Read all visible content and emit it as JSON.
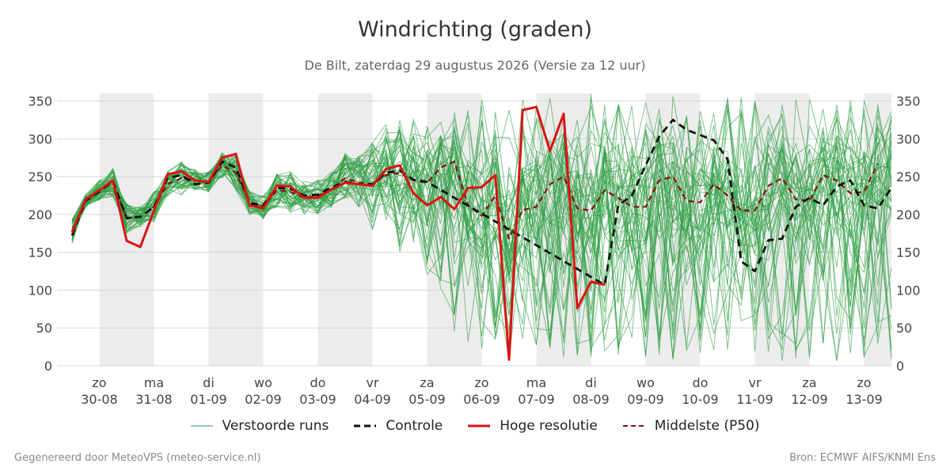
{
  "chart_data": {
    "type": "line",
    "title": "Windrichting (graden)",
    "subtitle": "De Bilt, zaterdag 29 augustus 2026 (Versie za 12 uur)",
    "ylim": [
      0,
      360
    ],
    "yticks": [
      0,
      50,
      100,
      150,
      200,
      250,
      300,
      350
    ],
    "grid": true,
    "legend_position": "bottom",
    "x_ticks": [
      {
        "day": "zo",
        "date": "30-08"
      },
      {
        "day": "ma",
        "date": "31-08"
      },
      {
        "day": "di",
        "date": "01-09"
      },
      {
        "day": "wo",
        "date": "02-09"
      },
      {
        "day": "do",
        "date": "03-09"
      },
      {
        "day": "vr",
        "date": "04-09"
      },
      {
        "day": "za",
        "date": "05-09"
      },
      {
        "day": "zo",
        "date": "06-09"
      },
      {
        "day": "ma",
        "date": "07-09"
      },
      {
        "day": "di",
        "date": "08-09"
      },
      {
        "day": "wo",
        "date": "09-09"
      },
      {
        "day": "do",
        "date": "10-09"
      },
      {
        "day": "vr",
        "date": "11-09"
      },
      {
        "day": "za",
        "date": "12-09"
      },
      {
        "day": "zo",
        "date": "13-09"
      }
    ],
    "x_unit": "days since 29-08 00:00",
    "shaded_day_bands": [
      [
        1.0,
        2.0
      ],
      [
        3.0,
        4.0
      ],
      [
        5.0,
        6.0
      ],
      [
        7.0,
        8.0
      ],
      [
        9.0,
        10.0
      ],
      [
        11.0,
        12.0
      ],
      [
        13.0,
        14.0
      ],
      [
        15.0,
        15.5
      ]
    ],
    "series": [
      {
        "name": "Hoge resolutie",
        "color": "#dd1111",
        "style": "solid",
        "points": [
          [
            0.5,
            176
          ],
          [
            0.75,
            220
          ],
          [
            1.0,
            232
          ],
          [
            1.25,
            245
          ],
          [
            1.5,
            165
          ],
          [
            1.75,
            157
          ],
          [
            2.0,
            205
          ],
          [
            2.25,
            253
          ],
          [
            2.5,
            257
          ],
          [
            2.75,
            245
          ],
          [
            3.0,
            243
          ],
          [
            3.25,
            275
          ],
          [
            3.5,
            280
          ],
          [
            3.75,
            212
          ],
          [
            4.0,
            208
          ],
          [
            4.25,
            238
          ],
          [
            4.5,
            237
          ],
          [
            4.75,
            222
          ],
          [
            5.0,
            222
          ],
          [
            5.25,
            233
          ],
          [
            5.5,
            242
          ],
          [
            5.75,
            240
          ],
          [
            6.0,
            238
          ],
          [
            6.25,
            260
          ],
          [
            6.5,
            265
          ],
          [
            6.75,
            228
          ],
          [
            7.0,
            212
          ],
          [
            7.25,
            223
          ],
          [
            7.5,
            207
          ],
          [
            7.75,
            235
          ],
          [
            8.0,
            236
          ],
          [
            8.25,
            252
          ],
          [
            8.5,
            8
          ],
          [
            8.75,
            338
          ],
          [
            9.0,
            342
          ],
          [
            9.25,
            284
          ],
          [
            9.5,
            333
          ],
          [
            9.75,
            76
          ],
          [
            10.0,
            111
          ],
          [
            10.25,
            107
          ]
        ]
      },
      {
        "name": "Controle",
        "color": "#111111",
        "style": "dashed",
        "points": [
          [
            0.5,
            172
          ],
          [
            0.75,
            218
          ],
          [
            1.0,
            230
          ],
          [
            1.25,
            244
          ],
          [
            1.5,
            195
          ],
          [
            1.75,
            197
          ],
          [
            2.0,
            210
          ],
          [
            2.25,
            248
          ],
          [
            2.5,
            252
          ],
          [
            2.75,
            240
          ],
          [
            3.0,
            242
          ],
          [
            3.25,
            270
          ],
          [
            3.5,
            262
          ],
          [
            3.75,
            215
          ],
          [
            4.0,
            212
          ],
          [
            4.25,
            235
          ],
          [
            4.5,
            234
          ],
          [
            4.75,
            225
          ],
          [
            5.0,
            226
          ],
          [
            5.25,
            236
          ],
          [
            5.5,
            243
          ],
          [
            5.75,
            240
          ],
          [
            6.0,
            240
          ],
          [
            6.25,
            255
          ],
          [
            6.5,
            258
          ],
          [
            6.75,
            246
          ],
          [
            7.0,
            243
          ],
          [
            10.25,
            107
          ],
          [
            10.5,
            212
          ],
          [
            10.75,
            225
          ],
          [
            11.0,
            265
          ],
          [
            11.25,
            303
          ],
          [
            11.5,
            325
          ],
          [
            11.75,
            312
          ],
          [
            12.0,
            305
          ],
          [
            12.25,
            298
          ],
          [
            12.5,
            273
          ],
          [
            12.75,
            138
          ],
          [
            13.0,
            125
          ],
          [
            13.25,
            166
          ],
          [
            13.5,
            168
          ],
          [
            13.75,
            210
          ],
          [
            14.0,
            222
          ],
          [
            14.25,
            212
          ],
          [
            14.5,
            237
          ],
          [
            14.75,
            245
          ],
          [
            15.0,
            212
          ],
          [
            15.25,
            208
          ],
          [
            15.5,
            235
          ]
        ]
      },
      {
        "name": "Middelste (P50)",
        "color": "#8b1010",
        "style": "dashed",
        "points": [
          [
            0.5,
            178
          ],
          [
            0.75,
            218
          ],
          [
            1.0,
            232
          ],
          [
            1.25,
            242
          ],
          [
            1.5,
            195
          ],
          [
            1.75,
            197
          ],
          [
            2.0,
            210
          ],
          [
            2.25,
            240
          ],
          [
            2.5,
            248
          ],
          [
            2.75,
            245
          ],
          [
            3.0,
            243
          ],
          [
            3.25,
            265
          ],
          [
            3.5,
            255
          ],
          [
            3.75,
            215
          ],
          [
            4.0,
            210
          ],
          [
            4.25,
            232
          ],
          [
            4.5,
            230
          ],
          [
            4.75,
            222
          ],
          [
            5.0,
            225
          ],
          [
            5.25,
            233
          ],
          [
            5.5,
            248
          ],
          [
            5.75,
            242
          ],
          [
            6.0,
            240
          ],
          [
            6.25,
            252
          ],
          [
            6.5,
            255
          ],
          [
            6.75,
            245
          ],
          [
            7.0,
            242
          ],
          [
            7.25,
            262
          ],
          [
            7.5,
            270
          ],
          [
            7.75,
            212
          ],
          [
            8.0,
            198
          ],
          [
            8.25,
            225
          ],
          [
            8.5,
            168
          ],
          [
            8.75,
            206
          ],
          [
            9.0,
            210
          ],
          [
            9.25,
            240
          ],
          [
            9.5,
            250
          ],
          [
            9.75,
            208
          ],
          [
            10.0,
            205
          ],
          [
            10.25,
            232
          ],
          [
            10.5,
            222
          ],
          [
            10.75,
            210
          ],
          [
            11.0,
            210
          ],
          [
            11.25,
            245
          ],
          [
            11.5,
            250
          ],
          [
            11.75,
            218
          ],
          [
            12.0,
            216
          ],
          [
            12.25,
            240
          ],
          [
            12.5,
            225
          ],
          [
            12.75,
            205
          ],
          [
            13.0,
            205
          ],
          [
            13.25,
            238
          ],
          [
            13.5,
            248
          ],
          [
            13.75,
            220
          ],
          [
            14.0,
            218
          ],
          [
            14.25,
            252
          ],
          [
            14.5,
            245
          ],
          [
            14.75,
            228
          ],
          [
            15.0,
            230
          ],
          [
            15.25,
            267
          ]
        ]
      },
      {
        "name": "Verstoorde runs",
        "color": "#2e9e44",
        "style": "thin",
        "note_ensemble": "approx. 50 member runs between the ensemble spread described by the envelope below",
        "x": [
          0.5,
          0.75,
          1.0,
          1.25,
          1.5,
          1.75,
          2.0,
          2.25,
          2.5,
          2.75,
          3.0,
          3.25,
          3.5,
          3.75,
          4.0,
          4.25,
          4.5,
          4.75,
          5.0,
          5.25,
          5.5,
          5.75,
          6.0,
          6.25,
          6.5,
          6.75,
          7.0,
          7.25,
          7.5,
          7.75,
          8.0,
          8.25,
          8.5,
          8.75,
          9.0,
          9.25,
          9.5,
          9.75,
          10.0,
          10.25,
          10.5,
          10.75,
          11.0,
          11.25,
          11.5,
          11.75,
          12.0,
          12.25,
          12.5,
          12.75,
          13.0,
          13.25,
          13.5,
          13.75,
          14.0,
          14.25,
          14.5,
          14.75,
          15.0,
          15.25,
          15.5
        ],
        "min": [
          155,
          205,
          215,
          228,
          170,
          180,
          190,
          225,
          230,
          230,
          228,
          245,
          240,
          200,
          195,
          215,
          210,
          205,
          205,
          210,
          215,
          215,
          200,
          205,
          150,
          160,
          120,
          80,
          40,
          30,
          20,
          20,
          5,
          10,
          10,
          15,
          10,
          8,
          10,
          15,
          10,
          8,
          10,
          12,
          8,
          5,
          10,
          8,
          6,
          5,
          5,
          8,
          6,
          5,
          8,
          10,
          5,
          6,
          8,
          10,
          5
        ],
        "median": [
          178,
          218,
          232,
          242,
          195,
          197,
          210,
          240,
          248,
          245,
          243,
          265,
          255,
          215,
          210,
          232,
          230,
          222,
          225,
          233,
          248,
          242,
          240,
          252,
          255,
          245,
          242,
          262,
          270,
          212,
          198,
          225,
          168,
          206,
          210,
          240,
          250,
          208,
          205,
          232,
          222,
          210,
          210,
          245,
          250,
          218,
          216,
          240,
          225,
          205,
          205,
          238,
          248,
          220,
          218,
          252,
          245,
          228,
          230,
          267,
          245
        ],
        "max": [
          190,
          225,
          245,
          270,
          215,
          210,
          235,
          262,
          280,
          262,
          258,
          285,
          293,
          235,
          230,
          265,
          272,
          255,
          260,
          262,
          290,
          300,
          305,
          320,
          325,
          345,
          330,
          340,
          355,
          350,
          355,
          358,
          355,
          358,
          360,
          358,
          358,
          358,
          360,
          358,
          355,
          358,
          360,
          358,
          358,
          355,
          358,
          358,
          356,
          355,
          358,
          355,
          355,
          358,
          356,
          358,
          355,
          354,
          355,
          356,
          355
        ]
      }
    ],
    "legend": [
      "Verstoorde runs",
      "Controle",
      "Hoge resolutie",
      "Middelste (P50)"
    ]
  },
  "footer": {
    "left": "Gegenereerd door MeteoVPS (meteo-service.nl)",
    "right": "Bron: ECMWF AIFS/KNMI Ens"
  }
}
